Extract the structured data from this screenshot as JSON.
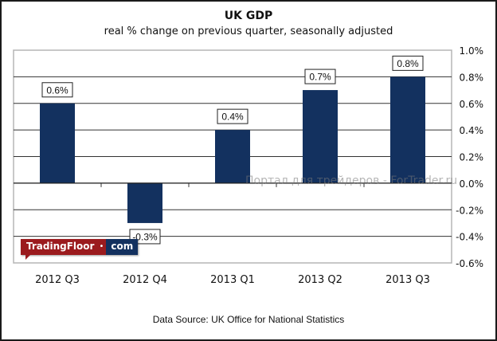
{
  "chart_data": {
    "type": "bar",
    "title": "UK GDP",
    "subtitle": "real % change on previous quarter, seasonally adjusted",
    "categories": [
      "2012 Q3",
      "2012 Q4",
      "2013 Q1",
      "2013 Q2",
      "2013 Q3"
    ],
    "values": [
      0.6,
      -0.3,
      0.4,
      0.7,
      0.8
    ],
    "data_labels": [
      "0.6%",
      "-0.3%",
      "0.4%",
      "0.7%",
      "0.8%"
    ],
    "xlabel": "",
    "ylabel": "",
    "ylim": [
      -0.6,
      1.0
    ],
    "yticks": [
      1.0,
      0.8,
      0.6,
      0.4,
      0.2,
      0.0,
      -0.2,
      -0.4,
      -0.6
    ],
    "ytick_labels": [
      "1.0%",
      "0.8%",
      "0.6%",
      "0.4%",
      "0.2%",
      "0.0%",
      "-0.2%",
      "-0.4%",
      "-0.6%"
    ],
    "y_axis_side": "right",
    "grid": true,
    "legend": "none",
    "bar_color": "#13315f",
    "source": "Data Source: UK Office for National Statistics"
  },
  "branding": {
    "logo_main": "TradingFloor",
    "logo_dot": "•",
    "logo_suffix": "com",
    "watermark": "Портал для трейдеров - ForTrader.ru"
  }
}
